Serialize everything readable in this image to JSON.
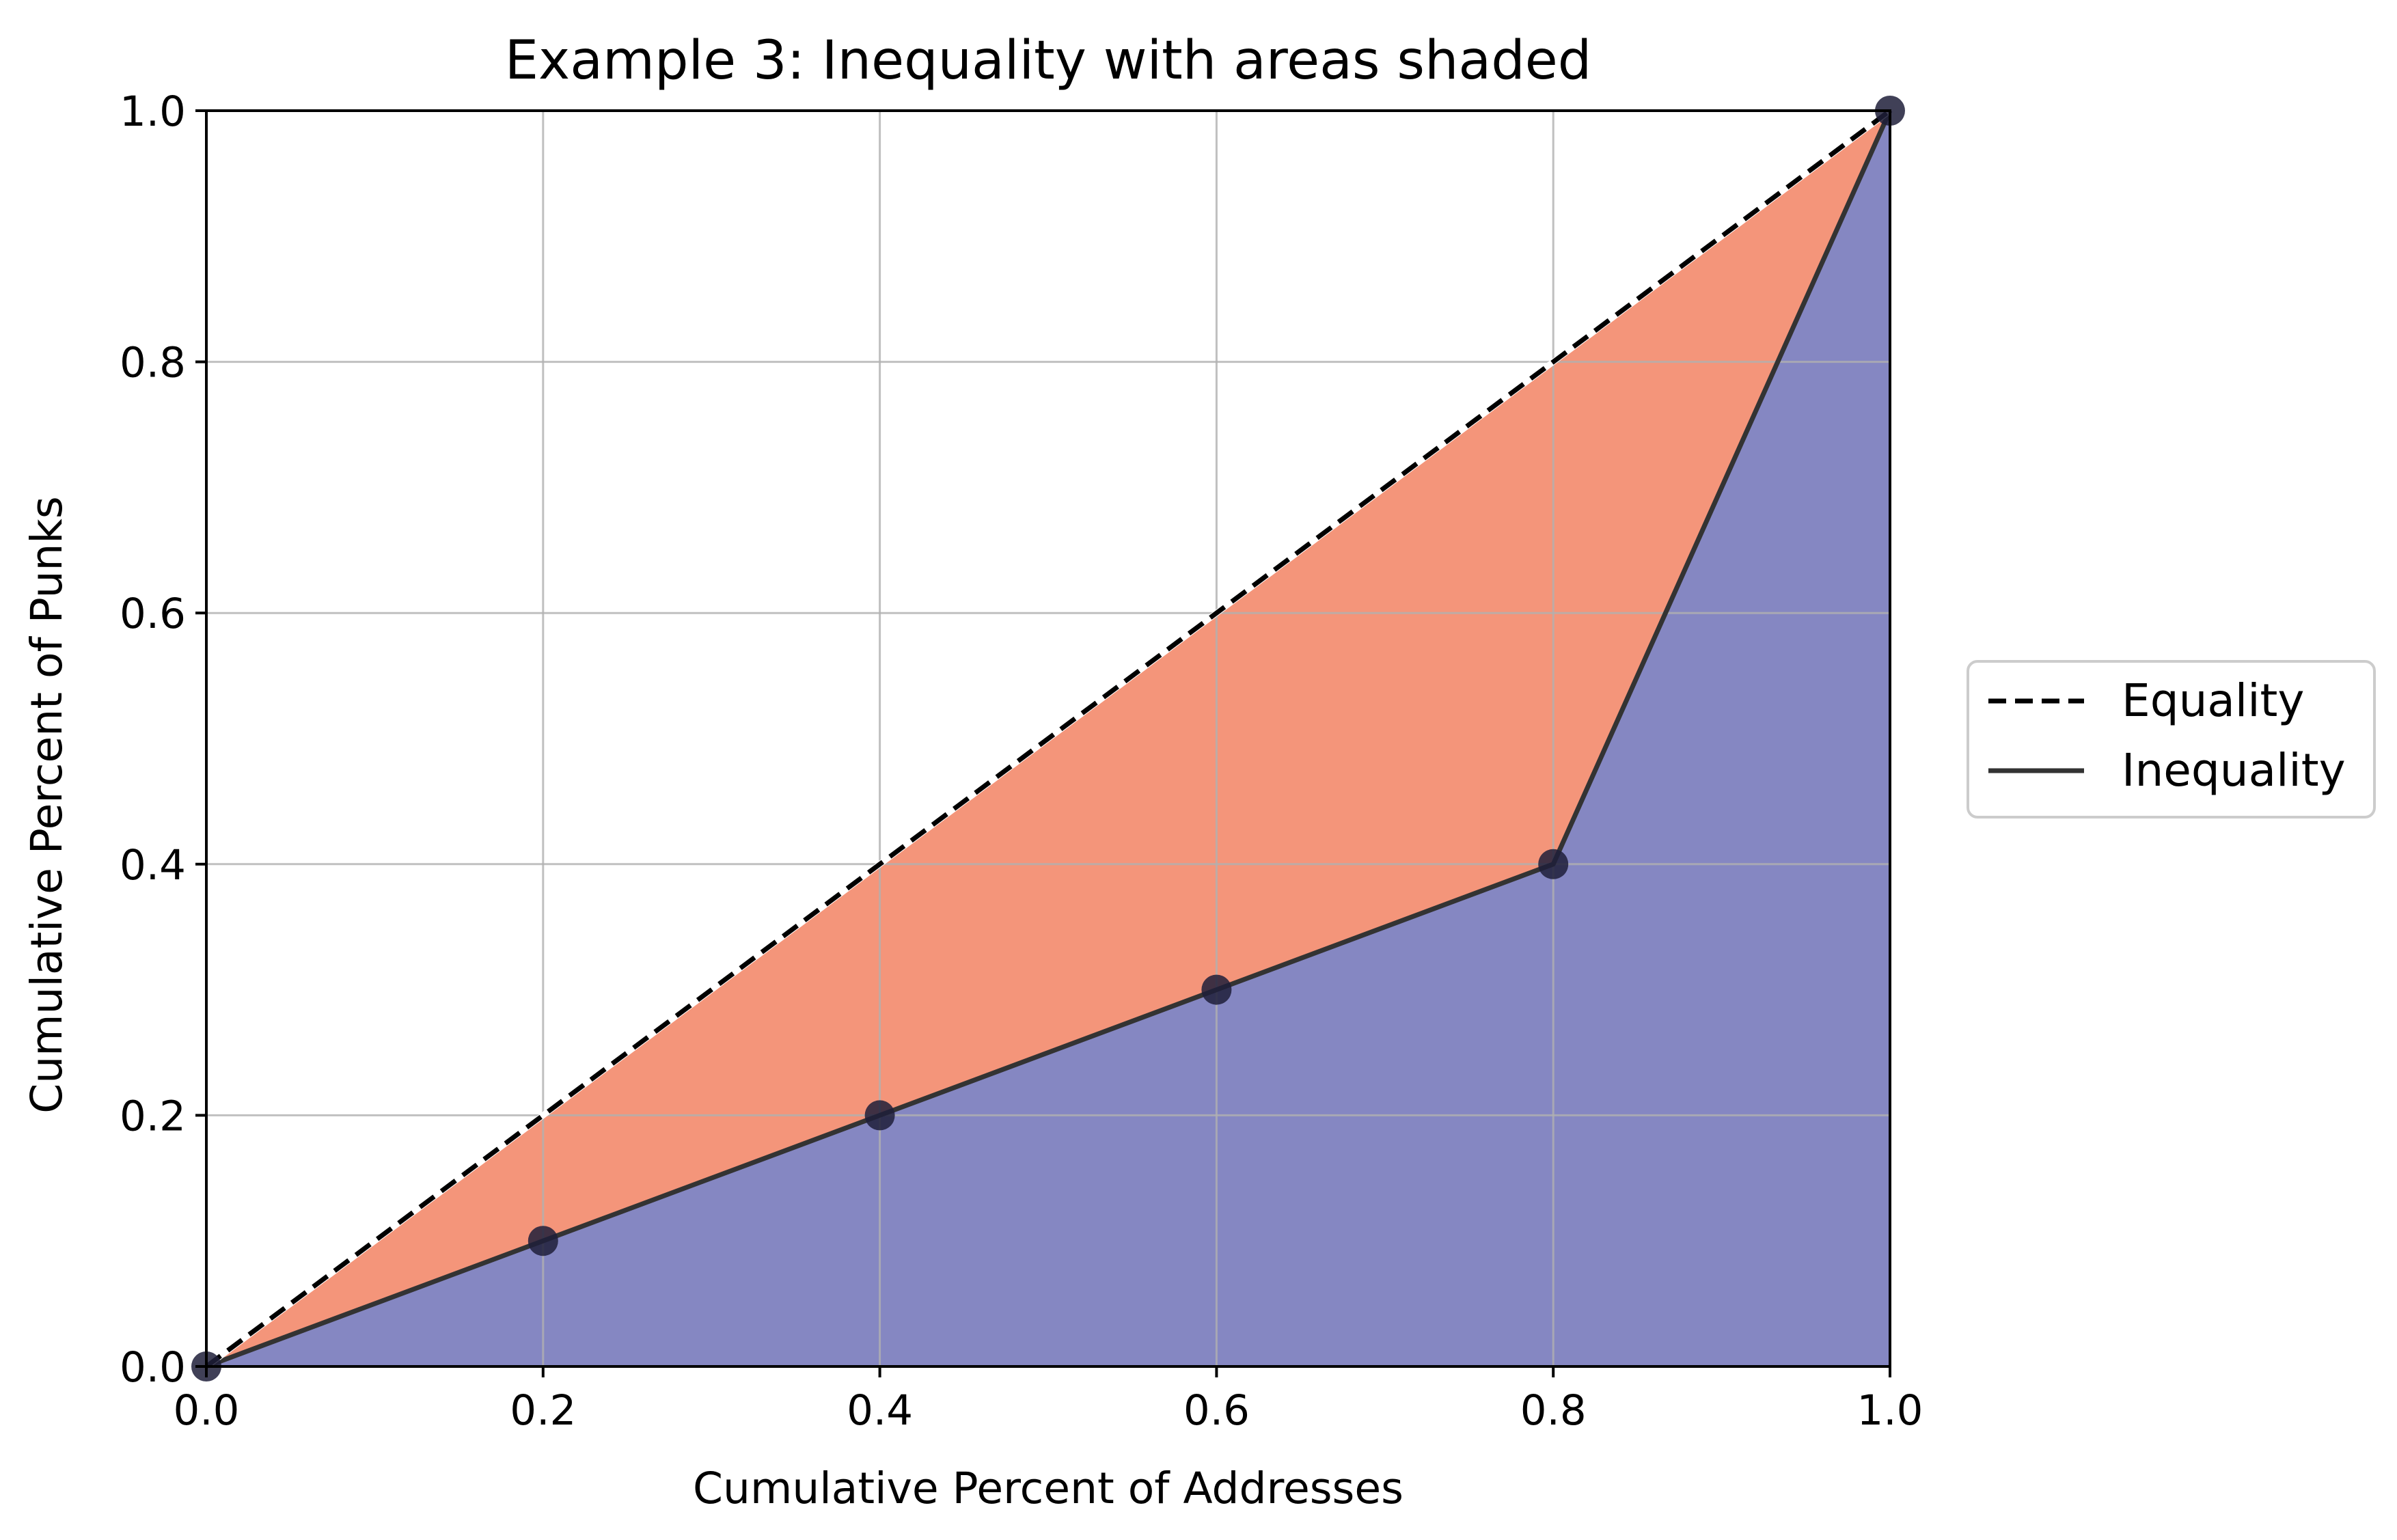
{
  "chart_data": {
    "type": "area",
    "title": "Example 3: Inequality with areas shaded",
    "xlabel": "Cumulative Percent of Addresses",
    "ylabel": "Cumulative Percent of Punks",
    "xlim": [
      0.0,
      1.0
    ],
    "ylim": [
      0.0,
      1.0
    ],
    "grid": true,
    "legend_position": "center-right outside",
    "x_ticks": [
      "0.0",
      "0.2",
      "0.4",
      "0.6",
      "0.8",
      "1.0"
    ],
    "y_ticks": [
      "0.0",
      "0.2",
      "0.4",
      "0.6",
      "0.8",
      "1.0"
    ],
    "series": [
      {
        "name": "Equality",
        "style": "dashed",
        "color": "#000000",
        "x": [
          0.0,
          1.0
        ],
        "y": [
          0.0,
          1.0
        ]
      },
      {
        "name": "Inequality",
        "style": "solid",
        "color": "#333333",
        "x": [
          0.0,
          0.2,
          0.4,
          0.6,
          0.8,
          1.0
        ],
        "y": [
          0.0,
          0.1,
          0.2,
          0.3,
          0.4,
          1.0
        ]
      }
    ],
    "points": {
      "x": [
        0.0,
        0.2,
        0.4,
        0.6,
        0.8,
        1.0
      ],
      "y": [
        0.0,
        0.1,
        0.2,
        0.3,
        0.4,
        1.0
      ]
    },
    "colors": {
      "upper_area": "#F4957A",
      "lower_area": "#8587C2",
      "grid": "#b0b0b0",
      "axes": "#000000",
      "marker": "#1f1f3a"
    }
  }
}
